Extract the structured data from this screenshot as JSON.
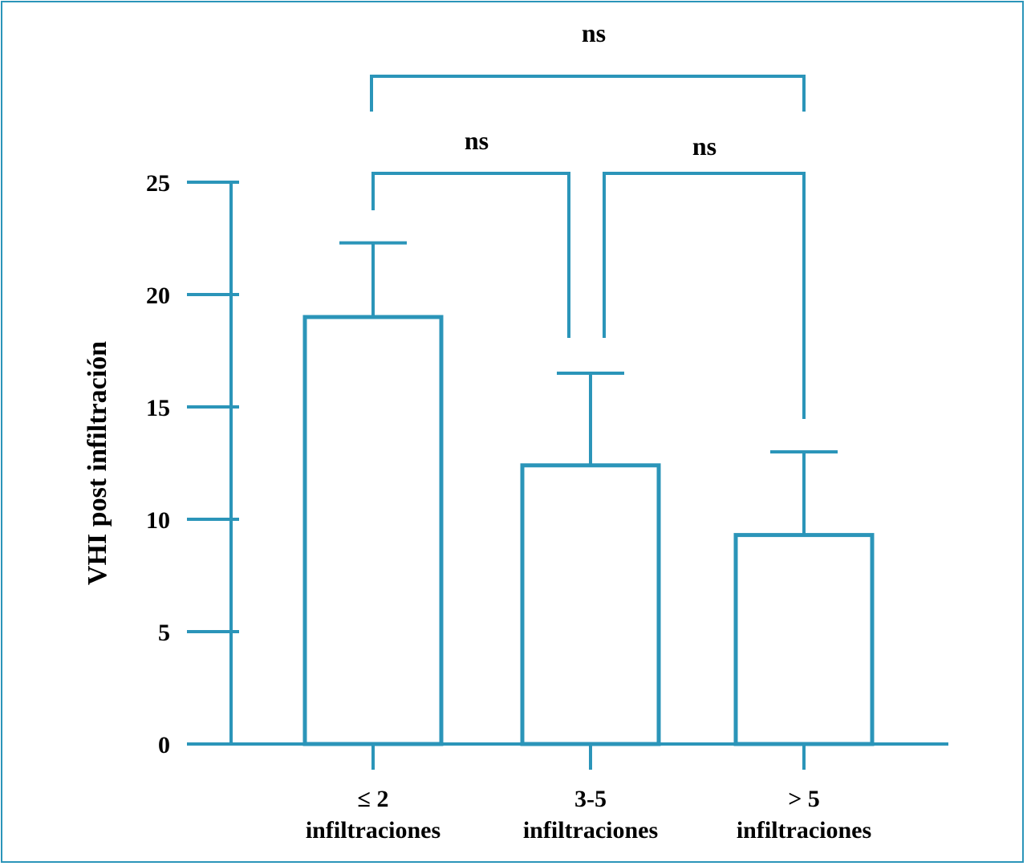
{
  "chart_data": {
    "type": "bar",
    "ylabel": "VHI post infiltración",
    "xlabel": "",
    "ylim": [
      0,
      25
    ],
    "yticks": [
      0,
      5,
      10,
      15,
      20,
      25
    ],
    "categories": [
      {
        "line1": "≤ 2",
        "line2": "infiltraciones"
      },
      {
        "line1": "3-5",
        "line2": "infiltraciones"
      },
      {
        "line1": "> 5",
        "line2": "infiltraciones"
      }
    ],
    "values": [
      19.0,
      12.4,
      9.3
    ],
    "error_upper": [
      22.3,
      16.5,
      13.0
    ],
    "comparisons": [
      {
        "groups": [
          0,
          1
        ],
        "label": "ns"
      },
      {
        "groups": [
          1,
          2
        ],
        "label": "ns"
      },
      {
        "groups": [
          0,
          2
        ],
        "label": "ns"
      }
    ],
    "grid": false,
    "legend": "none"
  },
  "colors": {
    "accent": "#2b95b9",
    "text": "#000000",
    "bar_fill": "#ffffff"
  }
}
